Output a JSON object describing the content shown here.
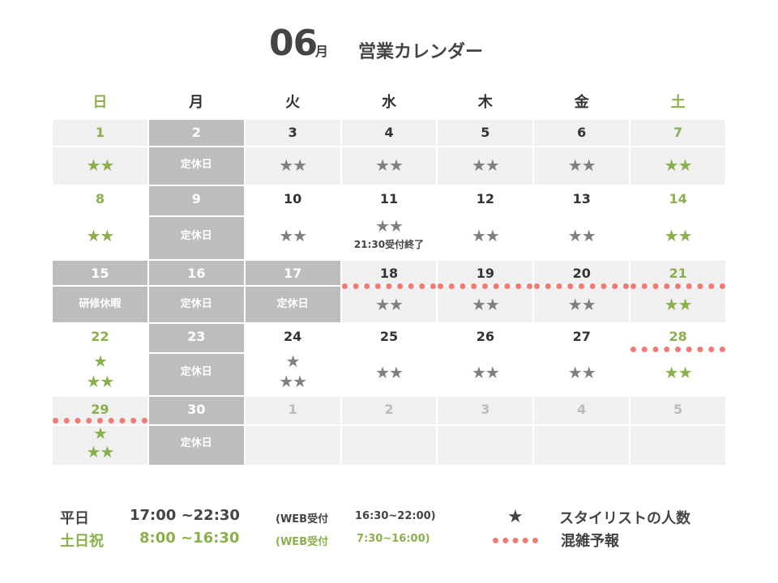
{
  "header": {
    "month_number": "06",
    "month_suffix": "月",
    "title": "営業カレンダー"
  },
  "weekdays": [
    "日",
    "月",
    "火",
    "水",
    "木",
    "金",
    "土"
  ],
  "weeks": [
    [
      {
        "day": "1",
        "stars": "★★",
        "style": "green-shade"
      },
      {
        "day": "2",
        "closed": "定休日",
        "style": "dark"
      },
      {
        "day": "3",
        "stars": "★★",
        "style": "shade"
      },
      {
        "day": "4",
        "stars": "★★",
        "style": "shade"
      },
      {
        "day": "5",
        "stars": "★★",
        "style": "shade"
      },
      {
        "day": "6",
        "stars": "★★",
        "style": "shade"
      },
      {
        "day": "7",
        "stars": "★★",
        "style": "green-shade"
      }
    ],
    [
      {
        "day": "8",
        "stars": "★★",
        "style": "green"
      },
      {
        "day": "9",
        "closed": "定休日",
        "style": "dark"
      },
      {
        "day": "10",
        "stars": "★★",
        "style": "plain"
      },
      {
        "day": "11",
        "stars": "★★",
        "note": "21:30受付終了",
        "style": "plain"
      },
      {
        "day": "12",
        "stars": "★★",
        "style": "plain"
      },
      {
        "day": "13",
        "stars": "★★",
        "style": "plain"
      },
      {
        "day": "14",
        "stars": "★★",
        "style": "green"
      }
    ],
    [
      {
        "day": "15",
        "closed": "研修休暇",
        "style": "dark"
      },
      {
        "day": "16",
        "closed": "定休日",
        "style": "dark"
      },
      {
        "day": "17",
        "closed": "定休日",
        "style": "dark"
      },
      {
        "day": "18",
        "stars": "★★",
        "style": "shade",
        "busy": true
      },
      {
        "day": "19",
        "stars": "★★",
        "style": "shade",
        "busy": true
      },
      {
        "day": "20",
        "stars": "★★",
        "style": "shade",
        "busy": true
      },
      {
        "day": "21",
        "stars": "★★",
        "style": "green-shade",
        "busy": true
      }
    ],
    [
      {
        "day": "22",
        "stars_top": "★",
        "stars": "★★",
        "style": "green"
      },
      {
        "day": "23",
        "closed": "定休日",
        "style": "dark"
      },
      {
        "day": "24",
        "stars_top": "★",
        "stars": "★★",
        "style": "plain"
      },
      {
        "day": "25",
        "stars": "★★",
        "style": "plain"
      },
      {
        "day": "26",
        "stars": "★★",
        "style": "plain"
      },
      {
        "day": "27",
        "stars": "★★",
        "style": "plain"
      },
      {
        "day": "28",
        "stars": "★★",
        "style": "green",
        "busy": true
      }
    ],
    [
      {
        "day": "29",
        "stars_top": "★",
        "stars": "★★",
        "style": "green-shade",
        "busy": true
      },
      {
        "day": "30",
        "closed": "定休日",
        "style": "dark"
      },
      {
        "day": "1",
        "style": "muted"
      },
      {
        "day": "2",
        "style": "muted"
      },
      {
        "day": "3",
        "style": "muted"
      },
      {
        "day": "4",
        "style": "muted"
      },
      {
        "day": "5",
        "style": "muted"
      }
    ]
  ],
  "legend": {
    "weekday_label": "平日",
    "weekday_hours": "17:00 ~22:30",
    "weekday_web_label": "(WEB受付",
    "weekday_web_hours": "16:30~22:00)",
    "weekend_label": "土日祝",
    "weekend_hours": "8:00 ~16:30",
    "weekend_web_label": "(WEB受付",
    "weekend_web_hours": "7:30~16:00)",
    "star_symbol": "★",
    "star_meaning": "スタイリストの人数",
    "busy_meaning": "混雑予報"
  },
  "colors": {
    "accent_green": "#8ab04c",
    "closed_gray": "#bdbdbd",
    "shade_gray": "#f0f0f0",
    "busy_red": "#ef7b74",
    "star_gray": "#7f7f7f"
  }
}
